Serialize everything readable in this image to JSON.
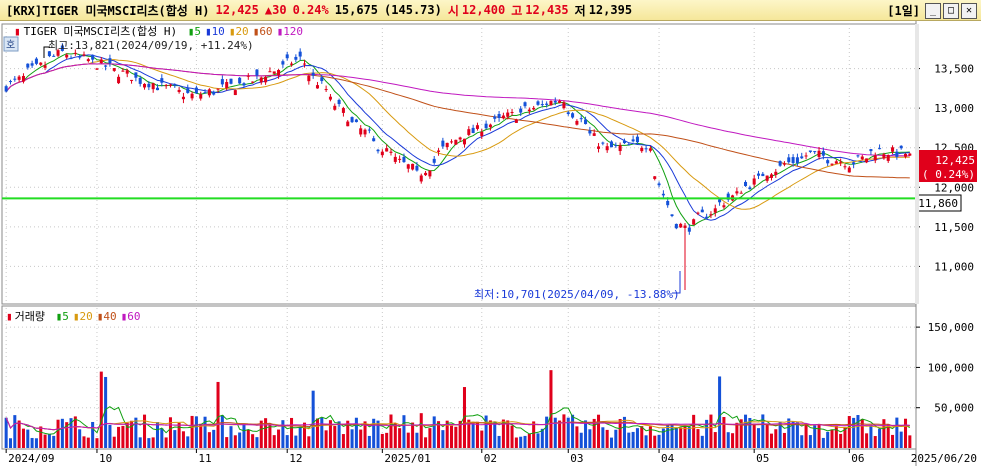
{
  "header": {
    "ticker": "[KRX]TIGER 미국MSCI리츠(합성 H)",
    "price": "12,425",
    "change": "▲30",
    "change_pct": "0.24%",
    "volume": "15,675",
    "amount": "(145.73)",
    "open_label": "시",
    "open": "12,400",
    "high_label": "고",
    "high": "12,435",
    "low_label": "저",
    "low": "12,395",
    "period": "[1일]"
  },
  "price_panel": {
    "legend_name": "TIGER 미국MSCI리츠(합성 H)",
    "ma_labels": [
      "5",
      "10",
      "20",
      "60",
      "120"
    ],
    "ma_colors": [
      "#11a011",
      "#1a3ad8",
      "#d89a10",
      "#c05018",
      "#c018c0"
    ],
    "high_note": "최고:13,821(2024/09/19, +11.24%)",
    "low_note": "최저:10,701(2025/04/09, -13.88%)",
    "current_price": "12,425",
    "current_pct": "( 0.24%)",
    "hline_value": "11,860",
    "y_ticks": [
      "13,500",
      "13,000",
      "12,500",
      "12,000",
      "11,500",
      "11,000"
    ],
    "badge": "호"
  },
  "volume_panel": {
    "legend_name": "거래량",
    "ma_labels": [
      "5",
      "20",
      "40",
      "60"
    ],
    "ma_colors": [
      "#11a011",
      "#d89a10",
      "#c05018",
      "#c018c0"
    ],
    "y_ticks": [
      "150,000",
      "100,000",
      "50,000"
    ]
  },
  "x_ticks": [
    "2024/09",
    "10",
    "11",
    "12",
    "2025/01",
    "02",
    "03",
    "04",
    "05",
    "06",
    "2025/06/20"
  ],
  "colors": {
    "up": "#e0001b",
    "down": "#1451d8",
    "hline": "#22dd22"
  },
  "chart_data": {
    "type": "candlestick",
    "date_range": [
      "2024/09",
      "2025/06/20"
    ],
    "price_anchors": [
      {
        "date": "2024/09/02",
        "close": 13280
      },
      {
        "date": "2024/09/19",
        "close": 13700,
        "high": 13821
      },
      {
        "date": "2024/10/01",
        "close": 13560
      },
      {
        "date": "2024/10/15",
        "close": 13350
      },
      {
        "date": "2024/11/01",
        "close": 13150
      },
      {
        "date": "2024/11/20",
        "close": 13350
      },
      {
        "date": "2024/12/05",
        "close": 13620
      },
      {
        "date": "2024/12/20",
        "close": 12900
      },
      {
        "date": "2025/01/02",
        "close": 12450
      },
      {
        "date": "2025/01/13",
        "close": 12150
      },
      {
        "date": "2025/01/24",
        "close": 12600
      },
      {
        "date": "2025/02/10",
        "close": 12880
      },
      {
        "date": "2025/02/28",
        "close": 13120
      },
      {
        "date": "2025/03/14",
        "close": 12480
      },
      {
        "date": "2025/03/28",
        "close": 12550
      },
      {
        "date": "2025/04/04",
        "close": 11650
      },
      {
        "date": "2025/04/09",
        "close": 11480,
        "low": 10701
      },
      {
        "date": "2025/04/22",
        "close": 11820
      },
      {
        "date": "2025/05/06",
        "close": 12200
      },
      {
        "date": "2025/05/20",
        "close": 12420
      },
      {
        "date": "2025/06/02",
        "close": 12300
      },
      {
        "date": "2025/06/10",
        "close": 12460
      },
      {
        "date": "2025/06/20",
        "close": 12425,
        "open": 12400,
        "high": 12435,
        "low": 12395
      }
    ],
    "horizontal_line": 11860,
    "y_range": [
      10550,
      14000
    ],
    "volume_y_range": [
      0,
      170000
    ],
    "volume_last": 15675
  }
}
